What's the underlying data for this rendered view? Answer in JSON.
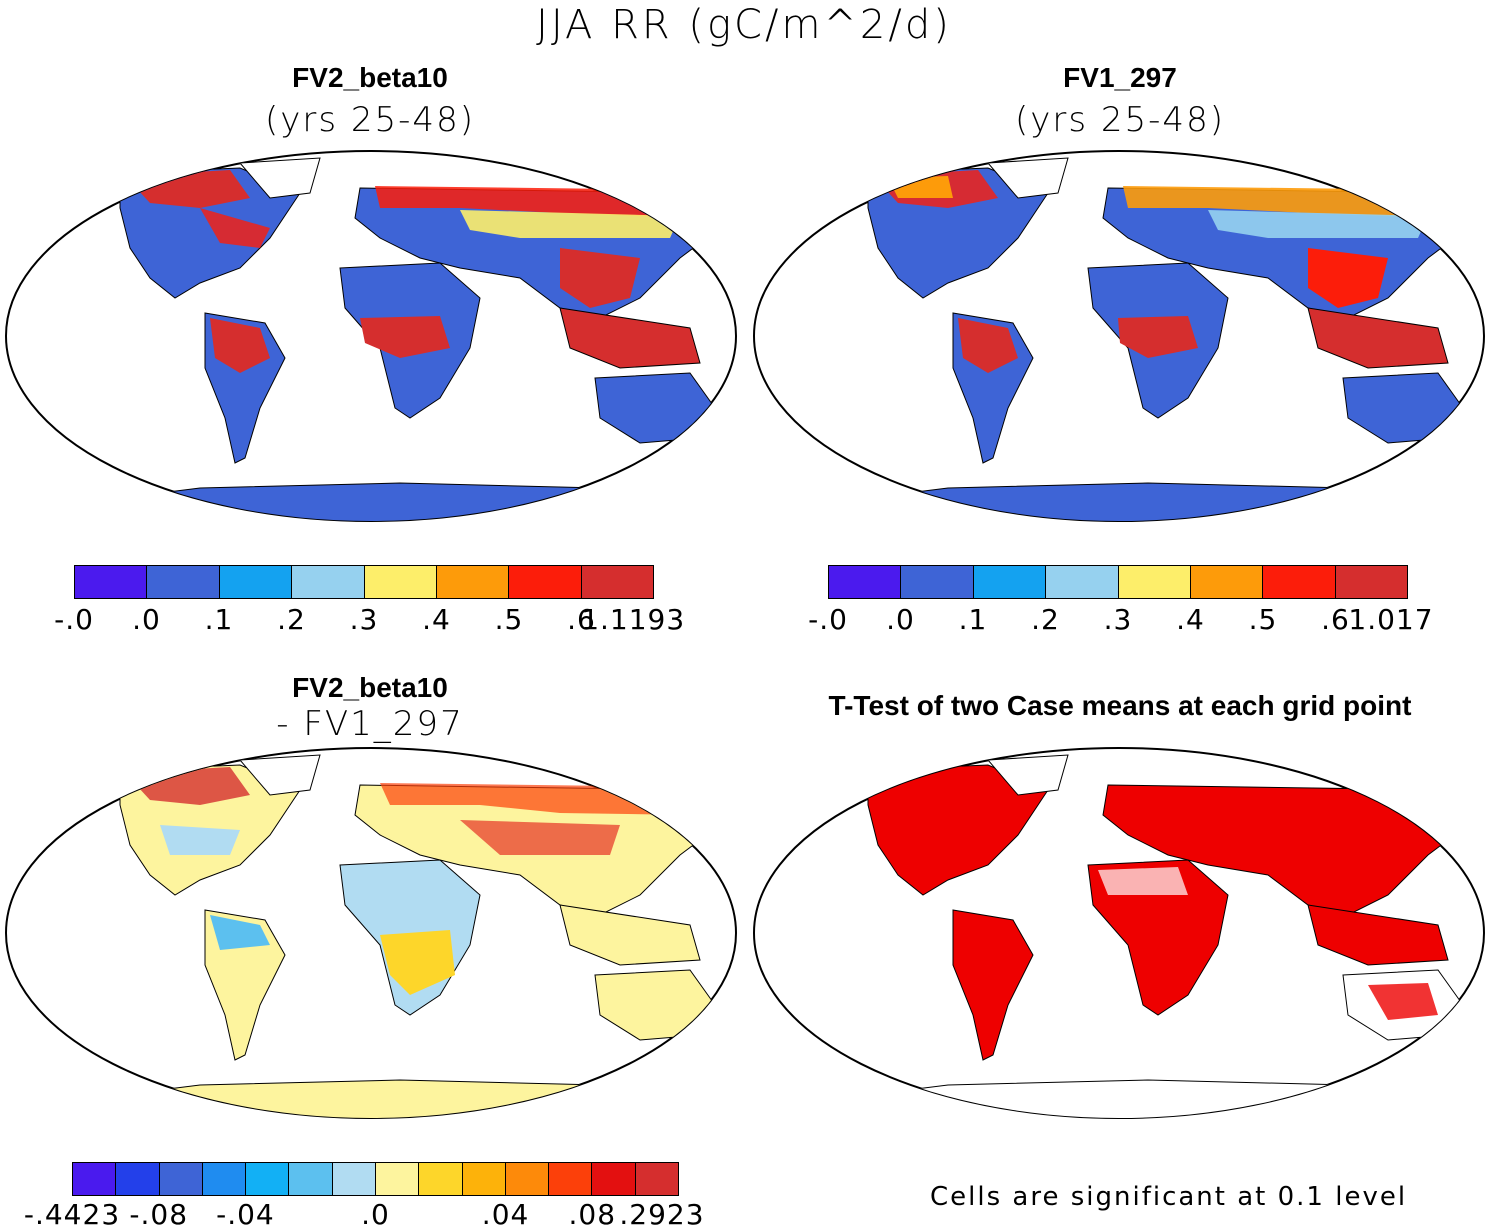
{
  "title": "JJA RR (gC/m^2/d)",
  "panels": [
    {
      "id": "p1",
      "title": "FV2_beta10",
      "subtitle": "(yrs 25-48)",
      "type": "field"
    },
    {
      "id": "p2",
      "title": "FV1_297",
      "subtitle": "(yrs 25-48)",
      "type": "field"
    },
    {
      "id": "p3",
      "title": "FV2_beta10",
      "subtitle": "- FV1_297",
      "type": "difference"
    },
    {
      "id": "p4",
      "title": "T-Test of two Case means at each grid point",
      "subtitle": "",
      "type": "significance"
    }
  ],
  "colorbars": {
    "field1": {
      "colors": [
        "#4b1aee",
        "#3e64d6",
        "#14a2f0",
        "#96d1ef",
        "#fdee6a",
        "#fd9b0a",
        "#fc1d0a",
        "#d52e2e"
      ],
      "labels": [
        "-.0",
        ".0",
        ".1",
        ".2",
        ".3",
        ".4",
        ".5",
        ".6",
        "1.1193"
      ]
    },
    "field2": {
      "colors": [
        "#4b1aee",
        "#3e64d6",
        "#14a2f0",
        "#96d1ef",
        "#fdee6a",
        "#fd9b0a",
        "#fc1d0a",
        "#d52e2e"
      ],
      "labels": [
        "-.0",
        ".0",
        ".1",
        ".2",
        ".3",
        ".4",
        ".5",
        ".6",
        "1.017"
      ]
    },
    "diff": {
      "colors": [
        "#4a1aee",
        "#2340ea",
        "#3e64d6",
        "#1f8cf0",
        "#12b0f5",
        "#5cc0ef",
        "#b1dcf2",
        "#fdf49e",
        "#fdd62a",
        "#fdb20a",
        "#fd8a0a",
        "#fc400a",
        "#e31010",
        "#d52e2e"
      ],
      "labels": [
        ".4423",
        "-.08",
        "-.04",
        ".0",
        ".04",
        ".08",
        ".2923"
      ],
      "first_prefix": "-"
    }
  },
  "footnote": "Cells are significant at 0.1 level"
}
